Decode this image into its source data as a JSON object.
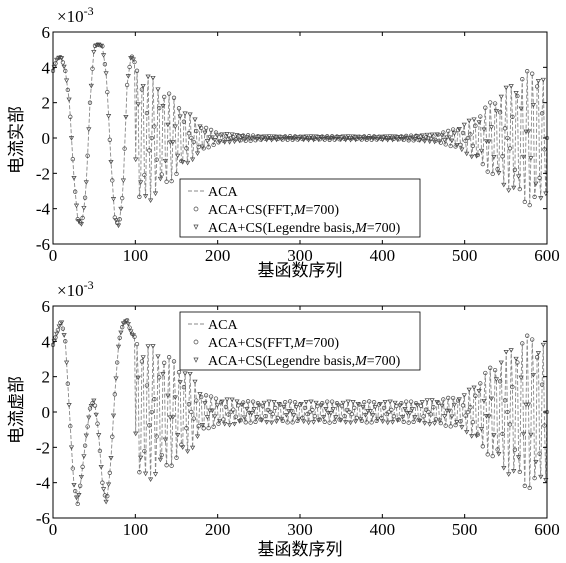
{
  "chart_data": [
    {
      "type": "line",
      "id": "top",
      "scale_base": "×10",
      "scale_exp": "-3",
      "xlabel": "基函数序列",
      "ylabel": "电流实部",
      "xlim": [
        0,
        600
      ],
      "ylim": [
        -6,
        6
      ],
      "xticks": [
        "0",
        "100",
        "200",
        "300",
        "400",
        "500",
        "600"
      ],
      "yticks": [
        "-6",
        "-4",
        "-2",
        "0",
        "2",
        "4",
        "6"
      ],
      "legend_position": "lower-center",
      "legend": [
        {
          "label": "ACA",
          "italic_suffix": "",
          "tail": "",
          "marker": "dashed-line"
        },
        {
          "label": "ACA+CS(FFT,",
          "italic_suffix": "M",
          "tail": "=700)",
          "marker": "circle"
        },
        {
          "label": "ACA+CS(Legendre basis,",
          "italic_suffix": "M",
          "tail": "=700)",
          "marker": "triangle-down"
        }
      ],
      "series_values_x": [
        0,
        5,
        10,
        15,
        20,
        25,
        30,
        35,
        40,
        45,
        50,
        55,
        60,
        65,
        70,
        75,
        80,
        85,
        90,
        95,
        100,
        110,
        120,
        130,
        140,
        150,
        160,
        170,
        180,
        190,
        200,
        220,
        240,
        260,
        280,
        300,
        320,
        340,
        360,
        380,
        400,
        420,
        440,
        460,
        480,
        500,
        520,
        540,
        560,
        570,
        580,
        585,
        590,
        595,
        600
      ],
      "series_envelope": [
        3.8,
        4.5,
        4.6,
        3.8,
        2.0,
        -2.0,
        -4.6,
        -4.9,
        -3.0,
        2.0,
        5.2,
        5.3,
        5.2,
        3.5,
        -1.0,
        -4.5,
        -5.0,
        -3.0,
        3.0,
        4.7,
        4.2,
        3.8,
        3.5,
        3.0,
        2.6,
        2.2,
        1.6,
        1.2,
        0.8,
        0.5,
        0.3,
        0.2,
        0.15,
        0.1,
        0.1,
        0.1,
        0.1,
        0.1,
        0.1,
        0.1,
        0.1,
        0.1,
        0.15,
        0.2,
        0.4,
        0.8,
        1.5,
        2.5,
        3.2,
        3.6,
        3.9,
        4.0,
        4.2,
        3.5,
        3.0
      ]
    },
    {
      "type": "line",
      "id": "bottom",
      "scale_base": "×10",
      "scale_exp": "-3",
      "xlabel": "基函数序列",
      "ylabel": "电流虚部",
      "xlim": [
        0,
        600
      ],
      "ylim": [
        -6,
        6
      ],
      "xticks": [
        "0",
        "100",
        "200",
        "300",
        "400",
        "500",
        "600"
      ],
      "yticks": [
        "-6",
        "-4",
        "-2",
        "0",
        "2",
        "4",
        "6"
      ],
      "legend_position": "top-center",
      "legend": [
        {
          "label": "ACA",
          "italic_suffix": "",
          "tail": "",
          "marker": "dashed-line"
        },
        {
          "label": "ACA+CS(FFT,",
          "italic_suffix": "M",
          "tail": "=700)",
          "marker": "circle"
        },
        {
          "label": "ACA+CS(Legendre basis,",
          "italic_suffix": "M",
          "tail": "=700)",
          "marker": "triangle-down"
        }
      ],
      "series_values_x": [
        0,
        5,
        10,
        15,
        20,
        25,
        30,
        35,
        40,
        45,
        50,
        55,
        60,
        65,
        70,
        75,
        80,
        85,
        90,
        95,
        100,
        110,
        120,
        130,
        140,
        150,
        160,
        170,
        180,
        190,
        200,
        220,
        240,
        260,
        280,
        300,
        320,
        340,
        360,
        380,
        400,
        420,
        440,
        460,
        480,
        500,
        520,
        540,
        560,
        570,
        580,
        585,
        590,
        595,
        600
      ],
      "series_envelope": [
        3.8,
        4.5,
        5.2,
        4.0,
        0.0,
        -4.0,
        -5.2,
        -3.5,
        -1.5,
        0.2,
        0.7,
        -1.0,
        -4.0,
        -5.2,
        -3.0,
        1.0,
        4.0,
        5.0,
        5.2,
        4.5,
        4.2,
        4.0,
        3.8,
        3.5,
        3.2,
        2.8,
        2.5,
        2.0,
        1.2,
        0.9,
        0.8,
        0.7,
        0.6,
        0.6,
        0.6,
        0.6,
        0.6,
        0.6,
        0.6,
        0.6,
        0.6,
        0.6,
        0.6,
        0.7,
        0.8,
        1.0,
        2.0,
        3.0,
        3.8,
        4.2,
        4.4,
        4.5,
        4.3,
        4.0,
        3.8
      ]
    }
  ]
}
